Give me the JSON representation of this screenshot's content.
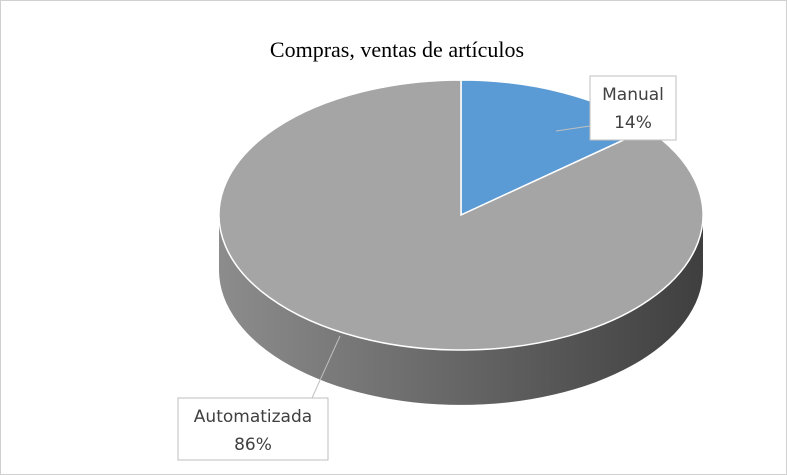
{
  "chart_data": {
    "type": "pie",
    "title": "Compras, ventas de artículos",
    "categories": [
      "Manual",
      "Automatizada"
    ],
    "values": [
      14,
      86
    ],
    "value_labels": [
      "14%",
      "86%"
    ],
    "colors": [
      "#5b9bd5",
      "#a5a5a5"
    ]
  }
}
